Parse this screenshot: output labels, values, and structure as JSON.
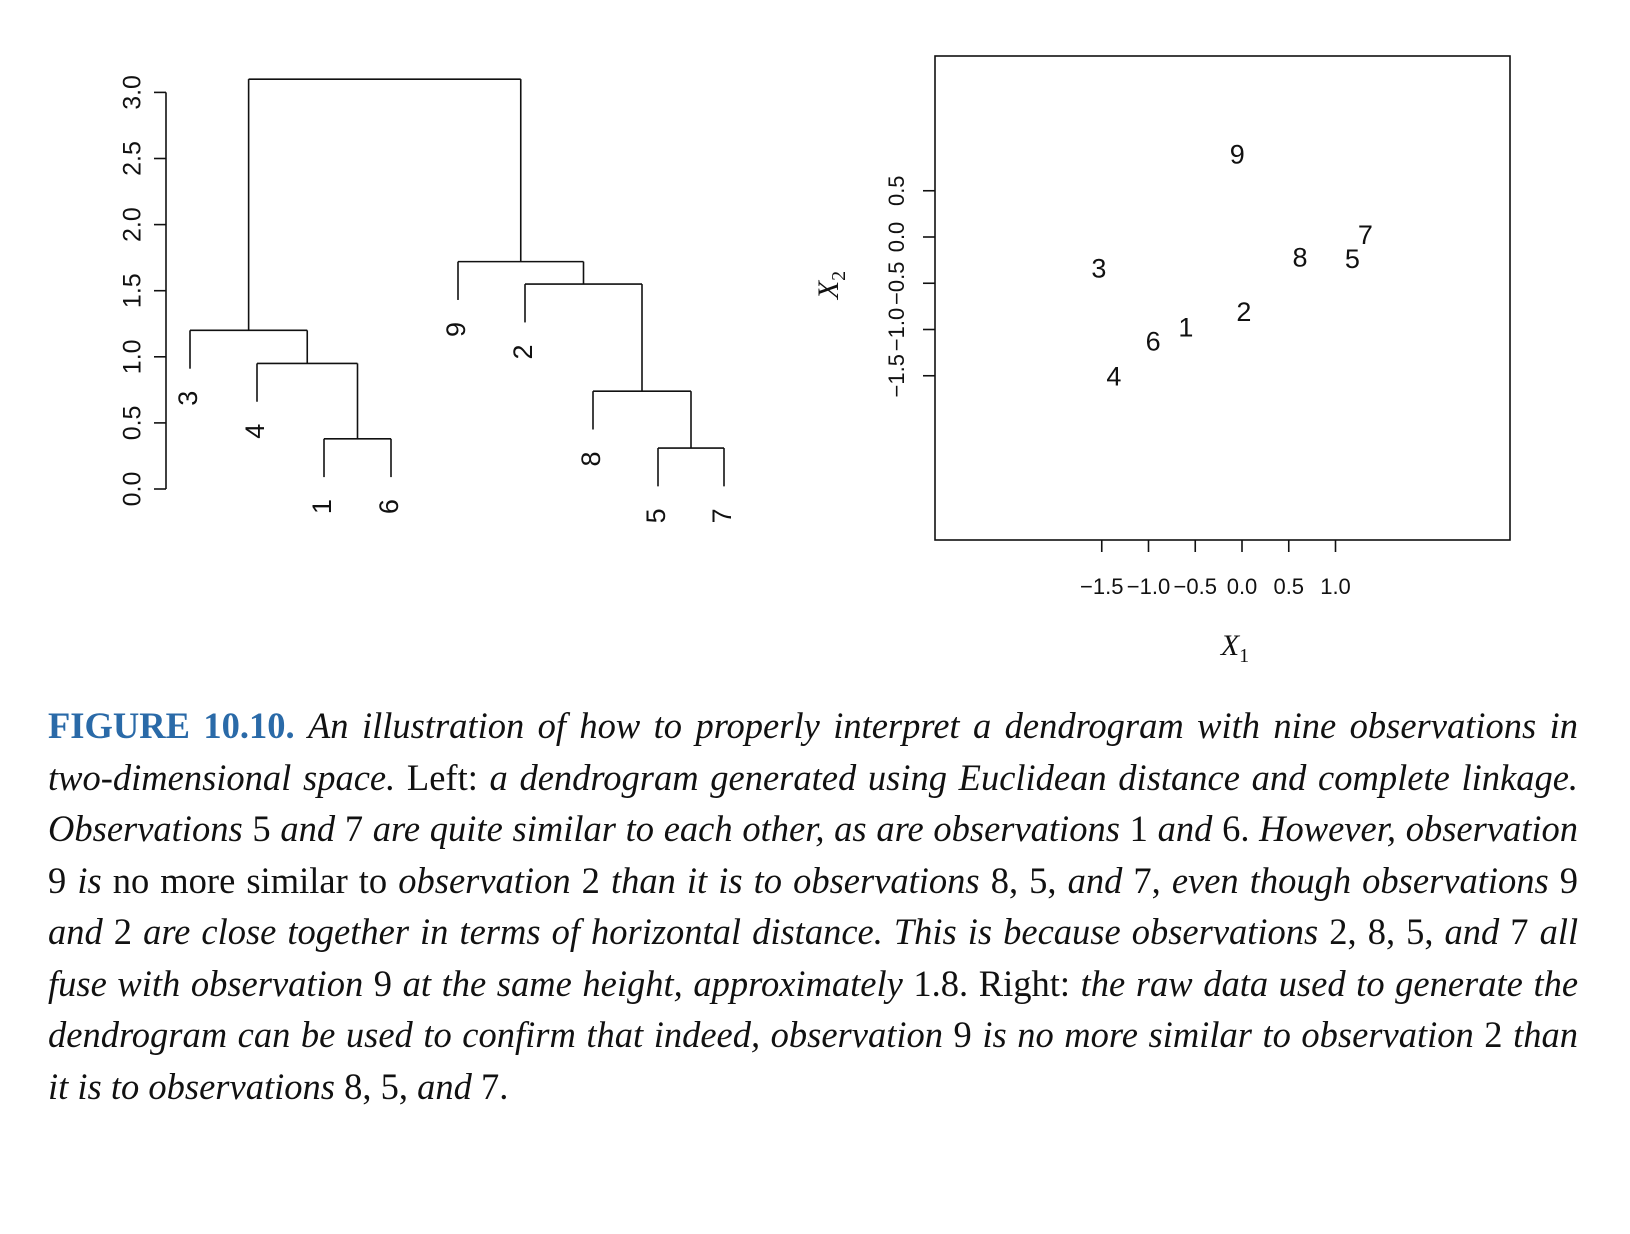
{
  "chart_data": [
    {
      "type": "dendrogram",
      "ylim": [
        0,
        3.1
      ],
      "y_ticks": [
        "0.0",
        "0.5",
        "1.0",
        "1.5",
        "2.0",
        "2.5",
        "3.0"
      ],
      "leaf_order": [
        "3",
        "4",
        "1",
        "6",
        "9",
        "2",
        "8",
        "5",
        "7"
      ],
      "merges": [
        {
          "left": "1",
          "right": "6",
          "height": 0.38
        },
        {
          "left": "5",
          "right": "7",
          "height": 0.31
        },
        {
          "left": "4",
          "right": "1-6",
          "height": 0.95
        },
        {
          "left": "8",
          "right": "5-7",
          "height": 0.74
        },
        {
          "left": "3",
          "right": "4-1-6",
          "height": 1.2
        },
        {
          "left": "2",
          "right": "8-5-7",
          "height": 1.55
        },
        {
          "left": "9",
          "right": "2-8-5-7",
          "height": 1.72
        },
        {
          "left": "3-4-1-6",
          "right": "9-2-8-5-7",
          "height": 3.1
        }
      ]
    },
    {
      "type": "scatter",
      "xlim": [
        -1.65,
        1.45
      ],
      "ylim": [
        -1.62,
        0.97
      ],
      "x_ticks": [
        "−1.5",
        "−1.0",
        "−0.5",
        "0.0",
        "0.5",
        "1.0"
      ],
      "y_ticks": [
        "−1.5",
        "−1.0",
        "−0.5",
        "0.0",
        "0.5"
      ],
      "xlabel": {
        "var": "X",
        "sub": "1"
      },
      "ylabel": {
        "var": "X",
        "sub": "2"
      },
      "points": [
        {
          "label": "1",
          "x": -0.6,
          "y": -1.0
        },
        {
          "label": "2",
          "x": 0.02,
          "y": -0.83
        },
        {
          "label": "3",
          "x": -1.53,
          "y": -0.36
        },
        {
          "label": "4",
          "x": -1.37,
          "y": -1.53
        },
        {
          "label": "5",
          "x": 1.18,
          "y": -0.26
        },
        {
          "label": "6",
          "x": -0.95,
          "y": -1.15
        },
        {
          "label": "7",
          "x": 1.32,
          "y": 0.0
        },
        {
          "label": "8",
          "x": 0.62,
          "y": -0.24
        },
        {
          "label": "9",
          "x": -0.05,
          "y": 0.87
        }
      ]
    }
  ],
  "caption": {
    "figure_label": "FIGURE 10.10.",
    "parts": [
      {
        "t": "An illustration of how to properly interpret a dendrogram with nine observations in two-dimensional space.",
        "i": true
      },
      {
        "t": "Left:",
        "i": false
      },
      {
        "t": "a dendrogram generated using Euclidean distance and complete linkage. Observations",
        "i": true
      },
      {
        "t": "5",
        "i": false
      },
      {
        "t": "and",
        "i": true
      },
      {
        "t": "7",
        "i": false
      },
      {
        "t": "are quite similar to each other, as are observations",
        "i": true
      },
      {
        "t": "1",
        "i": false
      },
      {
        "t": "and",
        "i": true
      },
      {
        "t": "6.",
        "i": false
      },
      {
        "t": "However, observation",
        "i": true
      },
      {
        "t": "9",
        "i": false
      },
      {
        "t": "is",
        "i": true
      },
      {
        "t": "no more similar to",
        "i": false
      },
      {
        "t": "observation",
        "i": true
      },
      {
        "t": "2",
        "i": false
      },
      {
        "t": "than it is to observations",
        "i": true
      },
      {
        "t": "8, 5,",
        "i": false
      },
      {
        "t": "and",
        "i": true
      },
      {
        "t": "7,",
        "i": false
      },
      {
        "t": "even though observations",
        "i": true
      },
      {
        "t": "9",
        "i": false
      },
      {
        "t": "and",
        "i": true
      },
      {
        "t": "2",
        "i": false
      },
      {
        "t": "are close together in terms of horizontal distance. This is because observations",
        "i": true
      },
      {
        "t": "2, 8, 5,",
        "i": false
      },
      {
        "t": "and",
        "i": true
      },
      {
        "t": "7",
        "i": false
      },
      {
        "t": "all fuse with observation",
        "i": true
      },
      {
        "t": "9",
        "i": false
      },
      {
        "t": "at the same height, approximately",
        "i": true
      },
      {
        "t": "1.8.",
        "i": false
      },
      {
        "t": "Right:",
        "i": false
      },
      {
        "t": "the raw data used to generate the dendrogram can be used to confirm that indeed, observation",
        "i": true
      },
      {
        "t": "9",
        "i": false
      },
      {
        "t": "is no more similar to observation",
        "i": true
      },
      {
        "t": "2",
        "i": false
      },
      {
        "t": "than it is to observations",
        "i": true
      },
      {
        "t": "8, 5,",
        "i": false
      },
      {
        "t": "and",
        "i": true
      },
      {
        "t": "7.",
        "i": false
      }
    ]
  }
}
